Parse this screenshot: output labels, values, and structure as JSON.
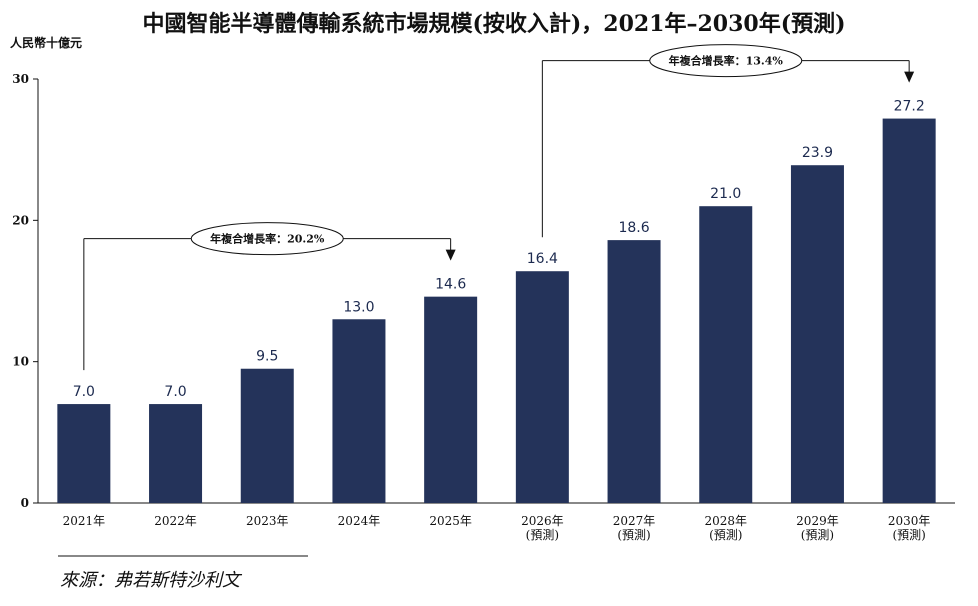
{
  "chart_data": {
    "type": "bar",
    "title": "中國智能半導體傳輸系統市場規模(按收入計)，2021年–2030年(預測)",
    "ylabel": "人民幣十億元",
    "ylim": [
      0,
      30
    ],
    "yticks": [
      "0",
      "10",
      "20",
      "30"
    ],
    "categories": [
      [
        "2021年"
      ],
      [
        "2022年"
      ],
      [
        "2023年"
      ],
      [
        "2024年"
      ],
      [
        "2025年"
      ],
      [
        "2026年",
        "(預測)"
      ],
      [
        "2027年",
        "(預測)"
      ],
      [
        "2028年",
        "(預測)"
      ],
      [
        "2029年",
        "(預測)"
      ],
      [
        "2030年",
        "(預測)"
      ]
    ],
    "values": [
      7.0,
      7.0,
      9.5,
      13.0,
      14.6,
      16.4,
      18.6,
      21.0,
      23.9,
      27.2
    ],
    "value_labels": [
      "7.0",
      "7.0",
      "9.5",
      "13.0",
      "14.6",
      "16.4",
      "18.6",
      "21.0",
      "23.9",
      "27.2"
    ],
    "bar_color": "#24335a",
    "grid": false,
    "annotations": [
      {
        "text": "年複合增長率：20.2%",
        "from": 0,
        "to": 4
      },
      {
        "text": "年複合增長率：13.4%",
        "from": 5,
        "to": 9
      }
    ]
  },
  "source": "來源：弗若斯特沙利文"
}
